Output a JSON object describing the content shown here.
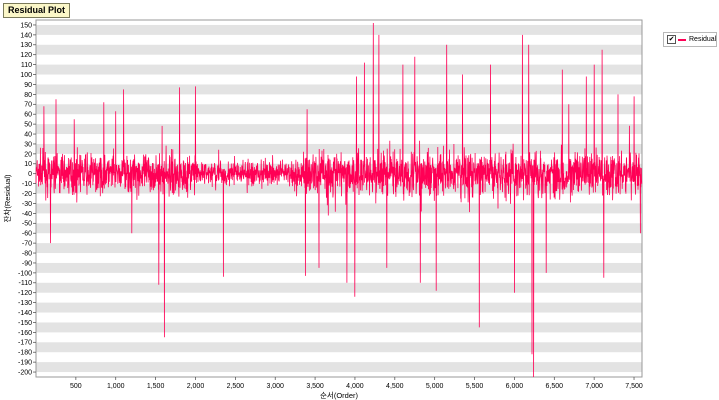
{
  "window": {
    "title": "Residual Plot"
  },
  "legend": {
    "checked": true,
    "check_glyph": "✔",
    "series_name": "Residual",
    "color": "#ff0055"
  },
  "chart_data": {
    "type": "line",
    "title": "Residual Plot",
    "xlabel": "순서(Order)",
    "ylabel": "잔차(Residual)",
    "xlim": [
      0,
      7600
    ],
    "ylim": [
      -205,
      155
    ],
    "xticks": [
      500,
      1000,
      1500,
      2000,
      2500,
      3000,
      3500,
      4000,
      4500,
      5000,
      5500,
      6000,
      6500,
      7000,
      7500
    ],
    "xtick_labels": [
      "500",
      "1,000",
      "1,500",
      "2,000",
      "2,500",
      "3,000",
      "3,500",
      "4,000",
      "4,500",
      "5,000",
      "5,500",
      "6,000",
      "6,500",
      "7,000",
      "7,500"
    ],
    "yticks": [
      150,
      140,
      130,
      120,
      110,
      100,
      90,
      80,
      70,
      60,
      50,
      40,
      30,
      20,
      10,
      0,
      -10,
      -20,
      -30,
      -40,
      -50,
      -60,
      -70,
      -80,
      -90,
      -100,
      -110,
      -120,
      -130,
      -140,
      -150,
      -160,
      -170,
      -180,
      -190,
      -200
    ],
    "grid": "alternating horizontal bands",
    "legend_position": "right",
    "series": [
      {
        "name": "Residual",
        "color": "#ff0055",
        "points_n": 7600,
        "typical_band": [
          -35,
          35
        ],
        "spikes": [
          {
            "x": 100,
            "y": 68
          },
          {
            "x": 180,
            "y": -70
          },
          {
            "x": 250,
            "y": 75
          },
          {
            "x": 480,
            "y": 55
          },
          {
            "x": 850,
            "y": 72
          },
          {
            "x": 1000,
            "y": 63
          },
          {
            "x": 1100,
            "y": 85
          },
          {
            "x": 1200,
            "y": -60
          },
          {
            "x": 1540,
            "y": -112
          },
          {
            "x": 1610,
            "y": -165
          },
          {
            "x": 1800,
            "y": 87
          },
          {
            "x": 2000,
            "y": 88
          },
          {
            "x": 2350,
            "y": -104
          },
          {
            "x": 3380,
            "y": -103
          },
          {
            "x": 3400,
            "y": 65
          },
          {
            "x": 3550,
            "y": -95
          },
          {
            "x": 3900,
            "y": -110
          },
          {
            "x": 4000,
            "y": -124
          },
          {
            "x": 4020,
            "y": 98
          },
          {
            "x": 4120,
            "y": 112
          },
          {
            "x": 4230,
            "y": 152
          },
          {
            "x": 4300,
            "y": 140
          },
          {
            "x": 4400,
            "y": -95
          },
          {
            "x": 4600,
            "y": 110
          },
          {
            "x": 4750,
            "y": 118
          },
          {
            "x": 4820,
            "y": -110
          },
          {
            "x": 5020,
            "y": -118
          },
          {
            "x": 5150,
            "y": 130
          },
          {
            "x": 5350,
            "y": 100
          },
          {
            "x": 5560,
            "y": -155
          },
          {
            "x": 5700,
            "y": 110
          },
          {
            "x": 6000,
            "y": -120
          },
          {
            "x": 6100,
            "y": 140
          },
          {
            "x": 6180,
            "y": 130
          },
          {
            "x": 6220,
            "y": -182
          },
          {
            "x": 6240,
            "y": -205
          },
          {
            "x": 6400,
            "y": -100
          },
          {
            "x": 6600,
            "y": 105
          },
          {
            "x": 6900,
            "y": 98
          },
          {
            "x": 7000,
            "y": 110
          },
          {
            "x": 7100,
            "y": 125
          },
          {
            "x": 7120,
            "y": -105
          },
          {
            "x": 7300,
            "y": 80
          },
          {
            "x": 7500,
            "y": 78
          },
          {
            "x": 7580,
            "y": -60
          }
        ]
      }
    ]
  }
}
